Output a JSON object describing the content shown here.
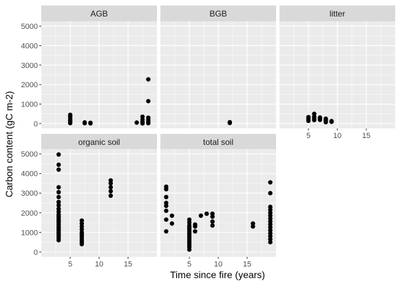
{
  "chart_data": {
    "type": "scatter",
    "xlabel": "Time since fire (years)",
    "ylabel": "Carbon content (gC m-2)",
    "xlim": [
      0,
      20
    ],
    "ylim": [
      -250,
      5250
    ],
    "x_ticks": [
      5,
      10,
      15
    ],
    "y_ticks": [
      0,
      1000,
      2000,
      3000,
      4000,
      5000
    ],
    "grid": true,
    "colors": {
      "panel_bg": "#ebebeb",
      "grid_major": "#ffffff",
      "strip_bg": "#d9d9d9",
      "point": "#000000"
    },
    "panels": [
      {
        "name": "AGB",
        "points": [
          [
            5,
            450
          ],
          [
            5,
            380
          ],
          [
            5,
            300
          ],
          [
            5,
            200
          ],
          [
            5,
            150
          ],
          [
            5,
            80
          ],
          [
            5,
            20
          ],
          [
            7.5,
            60
          ],
          [
            7.5,
            20
          ],
          [
            8.5,
            40
          ],
          [
            8.5,
            10
          ],
          [
            16.5,
            50
          ],
          [
            17.5,
            350
          ],
          [
            17.5,
            200
          ],
          [
            17.5,
            80
          ],
          [
            17.5,
            10
          ],
          [
            18.5,
            2270
          ],
          [
            18.5,
            1150
          ],
          [
            18.5,
            300
          ],
          [
            18.5,
            180
          ],
          [
            18.5,
            90
          ],
          [
            18.5,
            20
          ]
        ]
      },
      {
        "name": "BGB",
        "points": [
          [
            12,
            70
          ],
          [
            12,
            30
          ]
        ]
      },
      {
        "name": "litter",
        "points": [
          [
            5,
            330
          ],
          [
            5,
            260
          ],
          [
            5,
            200
          ],
          [
            5,
            140
          ],
          [
            6,
            500
          ],
          [
            6,
            350
          ],
          [
            6,
            260
          ],
          [
            6,
            180
          ],
          [
            7,
            310
          ],
          [
            7,
            260
          ],
          [
            7,
            190
          ],
          [
            8,
            250
          ],
          [
            8,
            200
          ],
          [
            8,
            140
          ],
          [
            8,
            70
          ],
          [
            9,
            130
          ],
          [
            9,
            90
          ]
        ]
      },
      {
        "name": "organic soil",
        "points": [
          [
            3,
            4970
          ],
          [
            3,
            4450
          ],
          [
            3,
            4200
          ],
          [
            3,
            3300
          ],
          [
            3,
            3050
          ],
          [
            3,
            2800
          ],
          [
            3,
            2550
          ],
          [
            3,
            2380
          ],
          [
            3,
            2200
          ],
          [
            3,
            2050
          ],
          [
            3,
            1900
          ],
          [
            3,
            1800
          ],
          [
            3,
            1700
          ],
          [
            3,
            1600
          ],
          [
            3,
            1500
          ],
          [
            3,
            1400
          ],
          [
            3,
            1300
          ],
          [
            3,
            1200
          ],
          [
            3,
            1100
          ],
          [
            3,
            1000
          ],
          [
            3,
            900
          ],
          [
            3,
            800
          ],
          [
            3,
            700
          ],
          [
            3,
            600
          ],
          [
            7,
            1600
          ],
          [
            7,
            1450
          ],
          [
            7,
            1300
          ],
          [
            7,
            1150
          ],
          [
            7,
            1000
          ],
          [
            7,
            900
          ],
          [
            7,
            800
          ],
          [
            7,
            700
          ],
          [
            7,
            600
          ],
          [
            7,
            500
          ],
          [
            7,
            400
          ],
          [
            12,
            3650
          ],
          [
            12,
            3500
          ],
          [
            12,
            3300
          ],
          [
            12,
            3100
          ],
          [
            12,
            2870
          ]
        ]
      },
      {
        "name": "total soil",
        "points": [
          [
            1,
            3330
          ],
          [
            1,
            3200
          ],
          [
            1,
            2800
          ],
          [
            1,
            2500
          ],
          [
            1,
            2350
          ],
          [
            1,
            2100
          ],
          [
            1,
            1650
          ],
          [
            1,
            1050
          ],
          [
            2,
            1850
          ],
          [
            2,
            1450
          ],
          [
            5,
            1650
          ],
          [
            5,
            1500
          ],
          [
            5,
            1350
          ],
          [
            5,
            1250
          ],
          [
            5,
            1150
          ],
          [
            5,
            1050
          ],
          [
            5,
            950
          ],
          [
            5,
            850
          ],
          [
            5,
            750
          ],
          [
            5,
            650
          ],
          [
            5,
            550
          ],
          [
            5,
            450
          ],
          [
            5,
            350
          ],
          [
            5,
            250
          ],
          [
            5,
            120
          ],
          [
            6,
            1400
          ],
          [
            6,
            1300
          ],
          [
            6,
            1050
          ],
          [
            7,
            1850
          ],
          [
            8,
            1950
          ],
          [
            9,
            1950
          ],
          [
            9,
            1800
          ],
          [
            9,
            1550
          ],
          [
            9,
            1350
          ],
          [
            16,
            1450
          ],
          [
            16,
            1300
          ],
          [
            19,
            3550
          ],
          [
            19,
            3000
          ],
          [
            19,
            2300
          ],
          [
            19,
            2150
          ],
          [
            19,
            2000
          ],
          [
            19,
            1850
          ],
          [
            19,
            1700
          ],
          [
            19,
            1550
          ],
          [
            19,
            1400
          ],
          [
            19,
            1250
          ],
          [
            19,
            1100
          ],
          [
            19,
            950
          ],
          [
            19,
            800
          ],
          [
            19,
            650
          ],
          [
            19,
            500
          ]
        ]
      }
    ]
  }
}
